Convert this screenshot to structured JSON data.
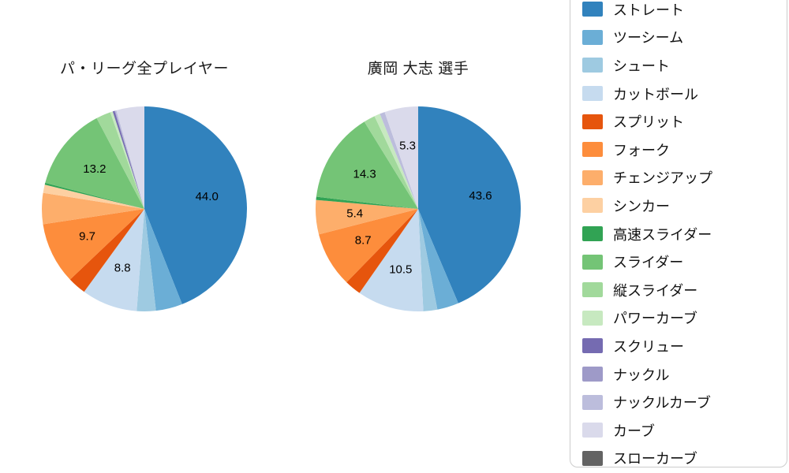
{
  "page": {
    "background": "#ffffff"
  },
  "chart_data": [
    {
      "type": "pie",
      "title": "パ・リーグ全プレイヤー",
      "start_angle": "top",
      "direction": "clockwise",
      "unit": "percent",
      "categories": [
        "ストレート",
        "ツーシーム",
        "シュート",
        "カットボール",
        "スプリット",
        "フォーク",
        "チェンジアップ",
        "シンカー",
        "高速スライダー",
        "スライダー",
        "縦スライダー",
        "パワーカーブ",
        "スクリュー",
        "ナックル",
        "ナックルカーブ",
        "カーブ",
        "スローカーブ"
      ],
      "values": [
        44.0,
        4.2,
        3.0,
        8.8,
        2.9,
        9.7,
        4.9,
        1.3,
        0.3,
        13.2,
        2.3,
        0.4,
        0.3,
        0.1,
        0.2,
        4.4,
        0.0
      ],
      "display_labels": [
        "44.0",
        "",
        "",
        "8.8",
        "",
        "9.7",
        "",
        "",
        "",
        "13.2",
        "",
        "",
        "",
        "",
        "",
        "",
        ""
      ]
    },
    {
      "type": "pie",
      "title": "廣岡 大志  選手",
      "start_angle": "top",
      "direction": "clockwise",
      "unit": "percent",
      "categories": [
        "ストレート",
        "ツーシーム",
        "シュート",
        "カットボール",
        "スプリット",
        "フォーク",
        "チェンジアップ",
        "シンカー",
        "高速スライダー",
        "スライダー",
        "縦スライダー",
        "パワーカーブ",
        "スクリュー",
        "ナックル",
        "ナックルカーブ",
        "カーブ",
        "スローカーブ"
      ],
      "values": [
        43.6,
        3.4,
        2.2,
        10.5,
        2.6,
        8.7,
        5.4,
        0.0,
        0.5,
        14.3,
        1.8,
        0.9,
        0.0,
        0.0,
        0.8,
        5.3,
        0.0
      ],
      "display_labels": [
        "43.6",
        "",
        "",
        "10.5",
        "",
        "8.7",
        "5.4",
        "",
        "",
        "14.3",
        "",
        "",
        "",
        "",
        "",
        "5.3",
        ""
      ]
    }
  ],
  "legend": {
    "items": [
      {
        "label": "ストレート",
        "color": "#3182bd"
      },
      {
        "label": "ツーシーム",
        "color": "#6baed6"
      },
      {
        "label": "シュート",
        "color": "#9ecae1"
      },
      {
        "label": "カットボール",
        "color": "#c6dbef"
      },
      {
        "label": "スプリット",
        "color": "#e6550d"
      },
      {
        "label": "フォーク",
        "color": "#fd8d3c"
      },
      {
        "label": "チェンジアップ",
        "color": "#fdae6b"
      },
      {
        "label": "シンカー",
        "color": "#fdd0a2"
      },
      {
        "label": "高速スライダー",
        "color": "#31a354"
      },
      {
        "label": "スライダー",
        "color": "#74c476"
      },
      {
        "label": "縦スライダー",
        "color": "#a1d99b"
      },
      {
        "label": "パワーカーブ",
        "color": "#c7e9c0"
      },
      {
        "label": "スクリュー",
        "color": "#756bb1"
      },
      {
        "label": "ナックル",
        "color": "#9e9ac8"
      },
      {
        "label": "ナックルカーブ",
        "color": "#bcbddc"
      },
      {
        "label": "カーブ",
        "color": "#dadaeb"
      },
      {
        "label": "スローカーブ",
        "color": "#636363"
      }
    ]
  }
}
